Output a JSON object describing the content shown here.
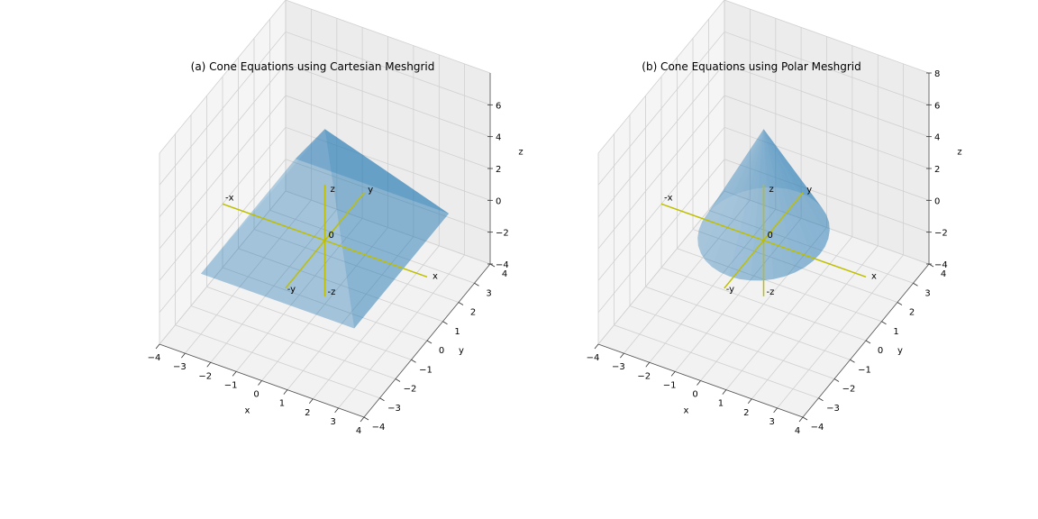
{
  "chart_data": [
    {
      "type": "surface3d",
      "title": "(a) Cone Equations using Cartesian Meshgrid",
      "xlabel": "x",
      "ylabel": "y",
      "zlabel": "z",
      "xlim": [
        -4,
        4
      ],
      "ylim": [
        -4,
        4
      ],
      "zlim": [
        -4,
        8
      ],
      "xticks": [
        "−4",
        "−3",
        "−2",
        "−1",
        "0",
        "1",
        "2",
        "3",
        "4"
      ],
      "yticks": [
        "−4",
        "−3",
        "−2",
        "−1",
        "0",
        "1",
        "2",
        "3",
        "4"
      ],
      "zticks": [
        "−4",
        "−2",
        "0",
        "2",
        "4",
        "6"
      ],
      "surface": {
        "equation": "z = 7 - 2.4·max(|x|, |y|)",
        "x_range": [
          -3,
          3
        ],
        "y_range": [
          -3,
          3
        ],
        "color": "#1f77b4",
        "alpha": 0.35
      },
      "axis_lines": {
        "color": "#bfbf00",
        "labels": [
          "x",
          "-x",
          "y",
          "-y",
          "z",
          "-z",
          "0"
        ]
      },
      "grid": true
    },
    {
      "type": "surface3d",
      "title": "(b) Cone Equations using Polar Meshgrid",
      "xlabel": "x",
      "ylabel": "y",
      "zlabel": "z",
      "xlim": [
        -4,
        4
      ],
      "ylim": [
        -4,
        4
      ],
      "zlim": [
        -4,
        8
      ],
      "xticks": [
        "−4",
        "−3",
        "−2",
        "−1",
        "0",
        "1",
        "2",
        "3",
        "4"
      ],
      "yticks": [
        "−4",
        "−3",
        "−2",
        "−1",
        "0",
        "1",
        "2",
        "3",
        "4"
      ],
      "zticks": [
        "−4",
        "−2",
        "0",
        "2",
        "4",
        "6",
        "8"
      ],
      "surface": {
        "equation": "z = 7 - 3·r",
        "r_range": [
          0,
          2.2
        ],
        "color": "#1f77b4",
        "alpha": 0.35
      },
      "axis_lines": {
        "color": "#bfbf00",
        "labels": [
          "x",
          "-x",
          "y",
          "-y",
          "z",
          "-z",
          "0"
        ]
      },
      "grid": true
    }
  ]
}
